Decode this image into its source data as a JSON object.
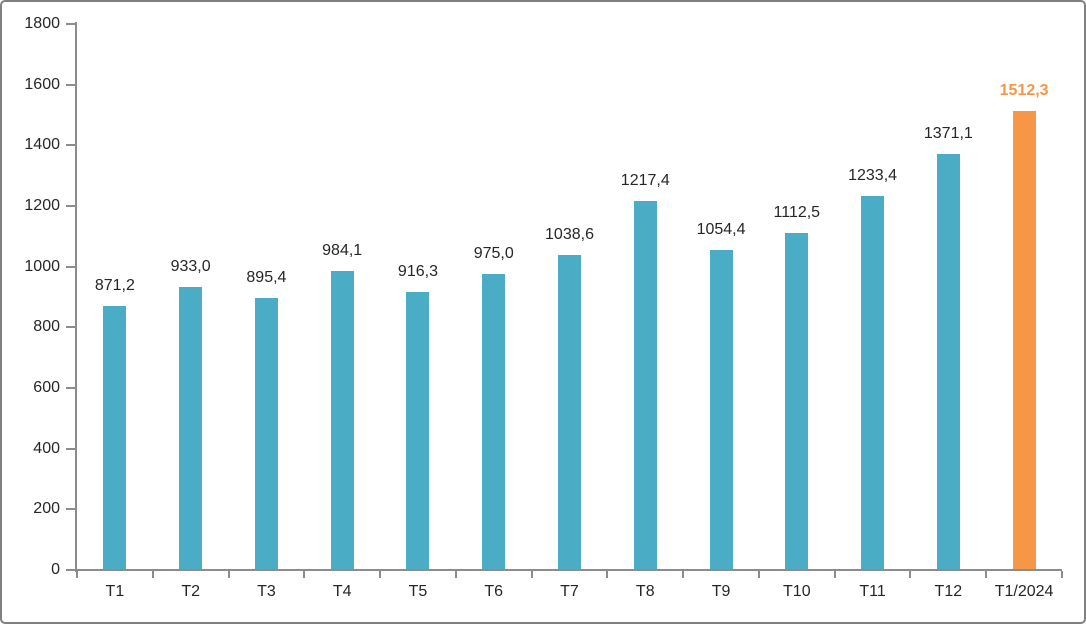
{
  "chart_data": {
    "type": "bar",
    "title": "",
    "xlabel": "",
    "ylabel": "",
    "categories": [
      "T1",
      "T2",
      "T3",
      "T4",
      "T5",
      "T6",
      "T7",
      "T8",
      "T9",
      "T10",
      "T11",
      "T12",
      "T1/2024"
    ],
    "values": [
      871.2,
      933.0,
      895.4,
      984.1,
      916.3,
      975.0,
      1038.6,
      1217.4,
      1054.4,
      1112.5,
      1233.4,
      1371.1,
      1512.3
    ],
    "value_labels": [
      "871,2",
      "933,0",
      "895,4",
      "984,1",
      "916,3",
      "975,0",
      "1038,6",
      "1217,4",
      "1054,4",
      "1112,5",
      "1233,4",
      "1371,1",
      "1512,3"
    ],
    "ylim": [
      0,
      1800
    ],
    "yticks": [
      0,
      200,
      400,
      600,
      800,
      1000,
      1200,
      1400,
      1600,
      1800
    ],
    "ytick_labels": [
      "0",
      "200",
      "400",
      "600",
      "800",
      "1000",
      "1200",
      "1400",
      "1600",
      "1800"
    ],
    "grid": false,
    "legend": null,
    "highlight_index": 12,
    "colors": {
      "bar": "#4BACC6",
      "highlight_bar": "#F79646",
      "highlight_label": "#F79646",
      "axis": "#8C8C8C",
      "text": "#262626",
      "frame_border": "#808080",
      "background": "#FFFFFF"
    }
  }
}
